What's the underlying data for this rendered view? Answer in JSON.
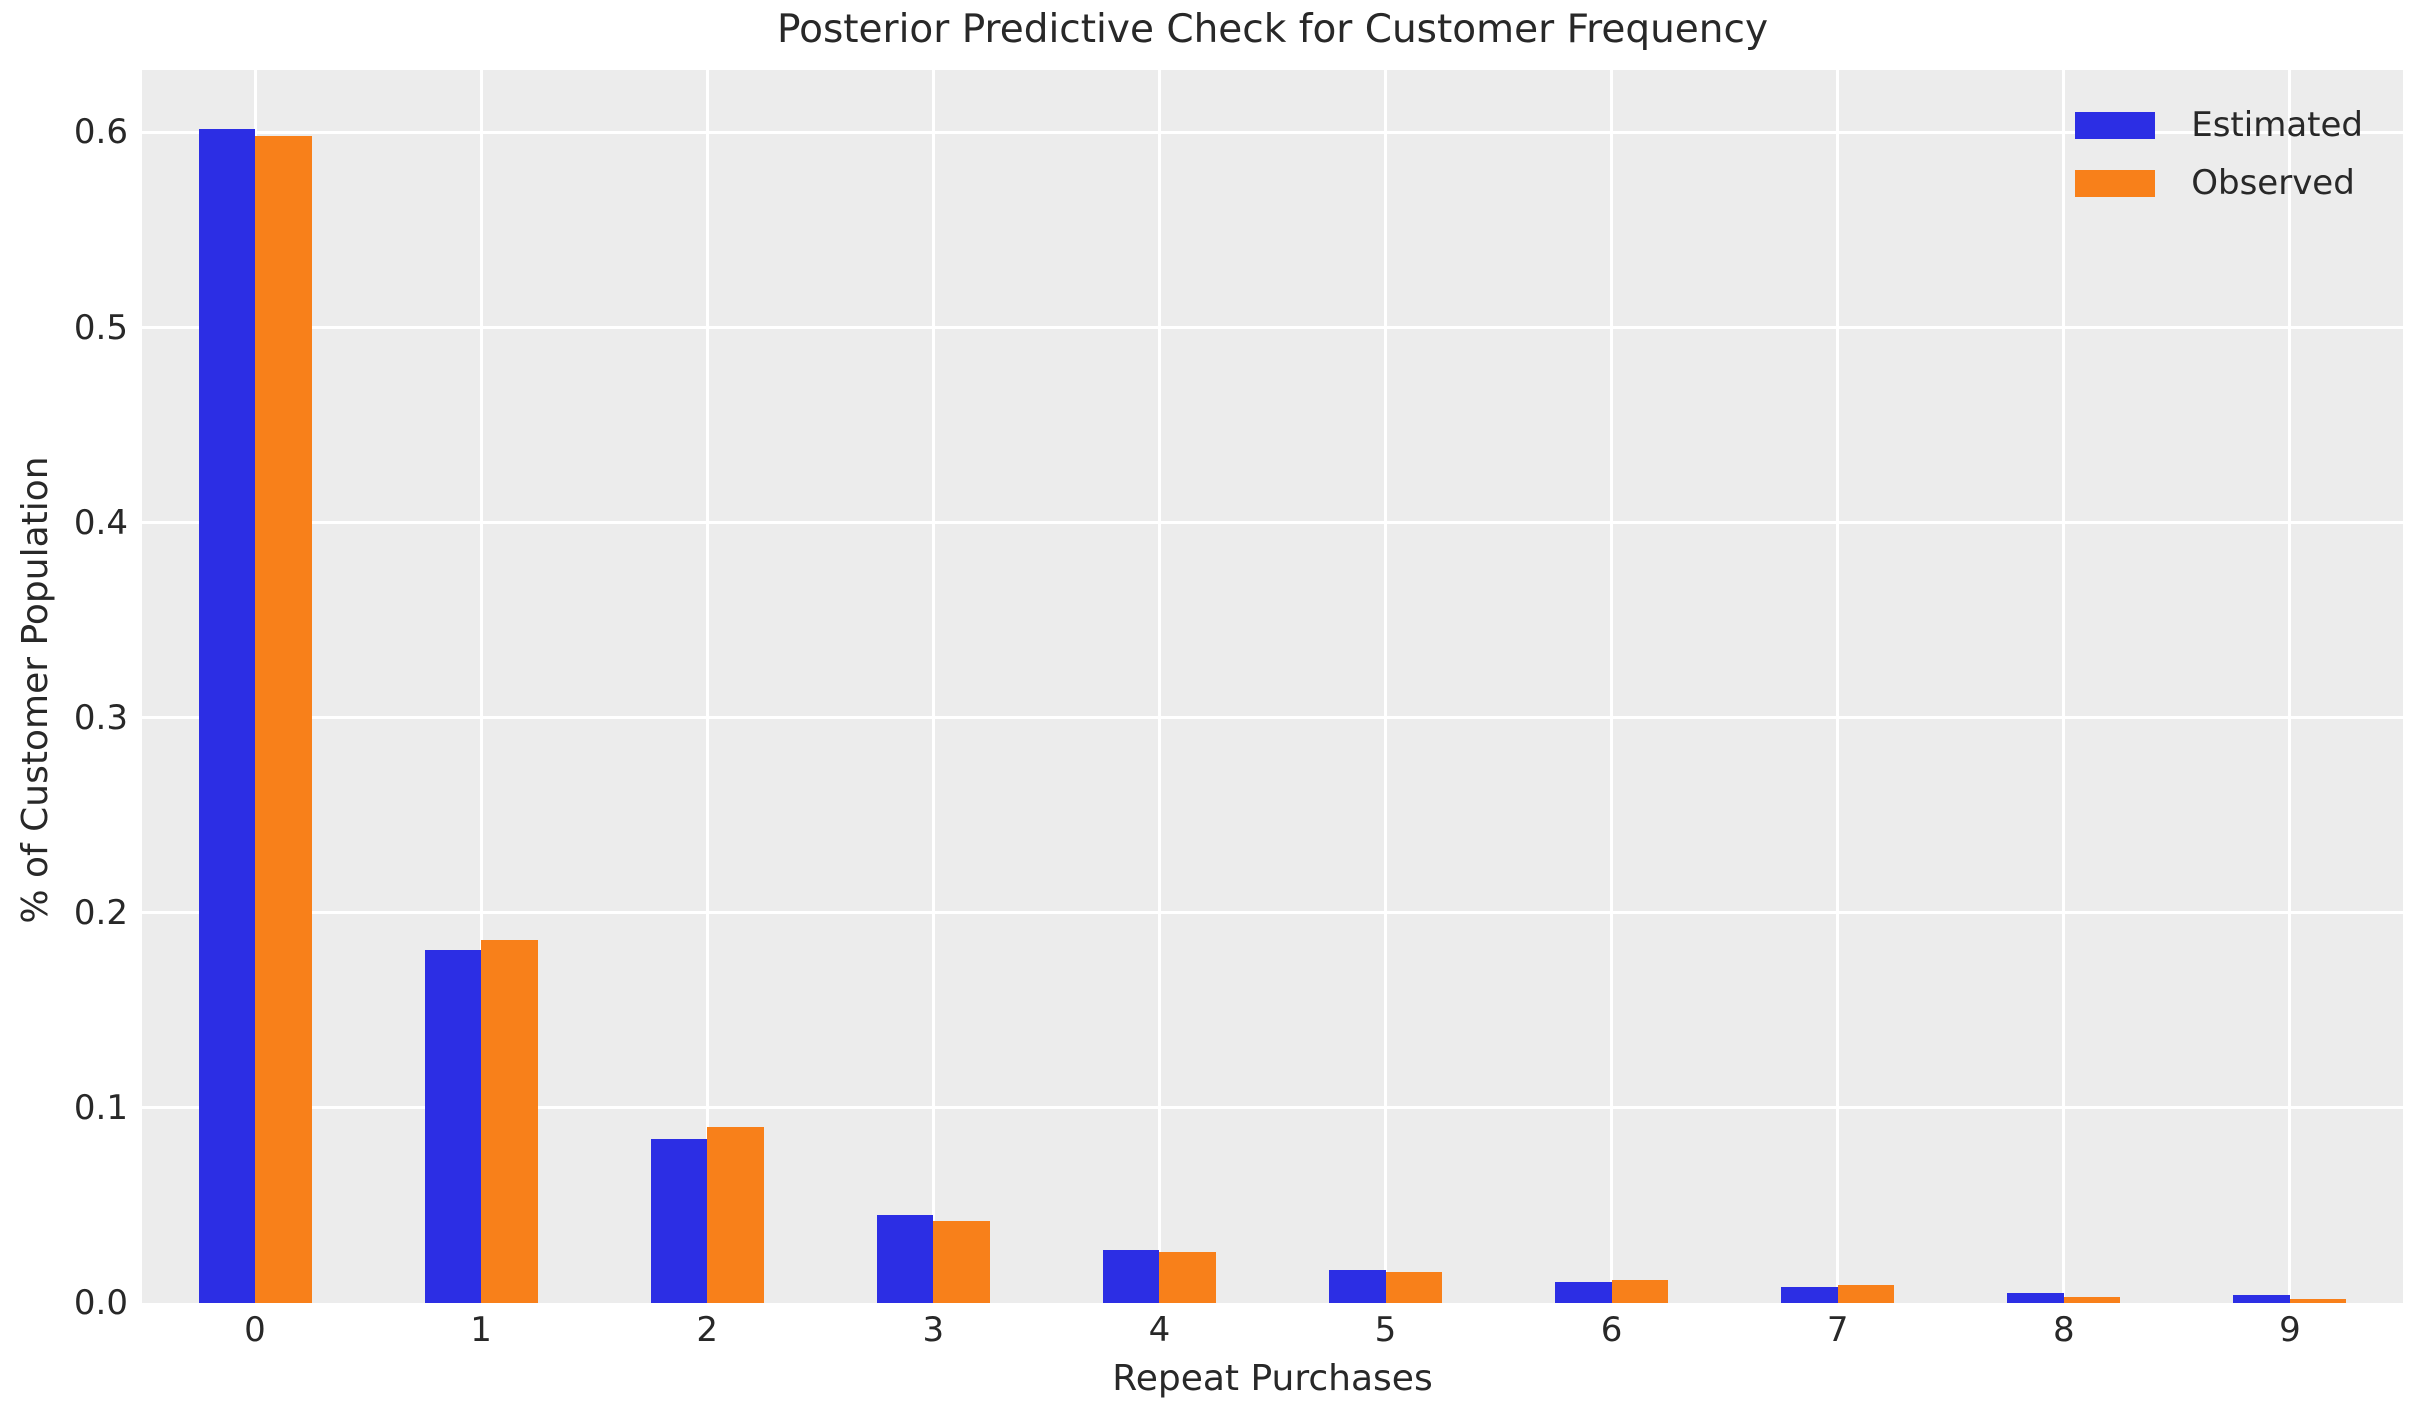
{
  "chart_data": {
    "type": "bar",
    "title": "Posterior Predictive Check for Customer Frequency",
    "xlabel": "Repeat Purchases",
    "ylabel": "% of Customer Population",
    "categories": [
      "0",
      "1",
      "2",
      "3",
      "4",
      "5",
      "6",
      "7",
      "8",
      "9"
    ],
    "series": [
      {
        "name": "Estimated",
        "color": "#2c2ee4",
        "values": [
          0.602,
          0.181,
          0.084,
          0.045,
          0.027,
          0.017,
          0.011,
          0.008,
          0.005,
          0.004
        ]
      },
      {
        "name": "Observed",
        "color": "#f8801a",
        "values": [
          0.598,
          0.186,
          0.09,
          0.042,
          0.026,
          0.016,
          0.012,
          0.009,
          0.003,
          0.002
        ]
      }
    ],
    "y_ticks": [
      0.0,
      0.1,
      0.2,
      0.3,
      0.4,
      0.5,
      0.6
    ],
    "y_tick_labels": [
      "0.0",
      "0.1",
      "0.2",
      "0.3",
      "0.4",
      "0.5",
      "0.6"
    ],
    "ylim": [
      0,
      0.632
    ],
    "grid": true,
    "legend_position": "upper right",
    "plot_bg_color": "#ececec",
    "grid_color": "#ffffff",
    "text_color": "#282828",
    "figure_bg_color": "#ffffff"
  }
}
